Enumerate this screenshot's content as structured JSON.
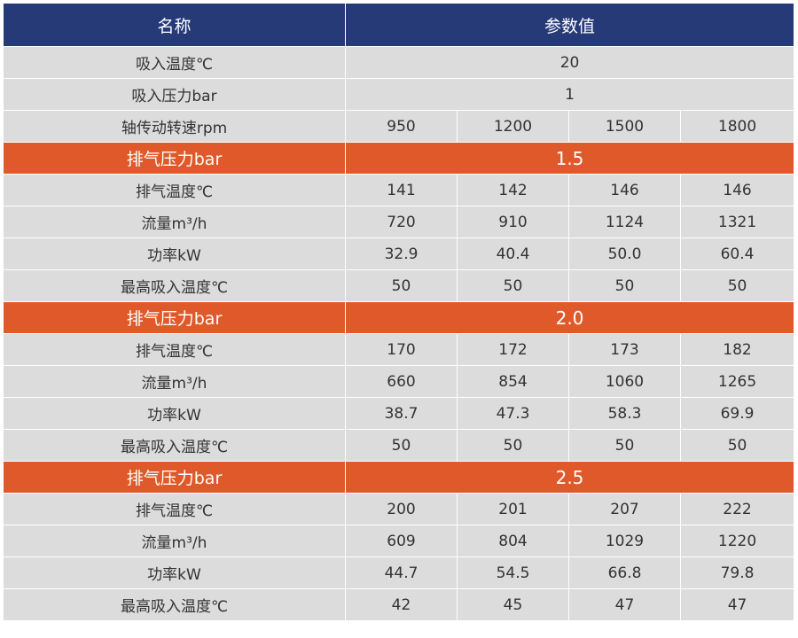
{
  "header": {
    "name": "名称",
    "value": "参数值"
  },
  "common": {
    "intake_temp": {
      "label": "吸入温度℃",
      "value": "20"
    },
    "intake_pressure": {
      "label": "吸入压力bar",
      "value": "1"
    },
    "speed": {
      "label": "轴传动转速rpm",
      "values": [
        "950",
        "1200",
        "1500",
        "1800"
      ]
    }
  },
  "sections": [
    {
      "pressure_label": "排气压力bar",
      "pressure_value": "1.5",
      "rows": [
        {
          "label": "排气温度℃",
          "values": [
            "141",
            "142",
            "146",
            "146"
          ]
        },
        {
          "label": "流量m³/h",
          "values": [
            "720",
            "910",
            "1124",
            "1321"
          ]
        },
        {
          "label": "功率kW",
          "values": [
            "32.9",
            "40.4",
            "50.0",
            "60.4"
          ]
        },
        {
          "label": "最高吸入温度℃",
          "values": [
            "50",
            "50",
            "50",
            "50"
          ]
        }
      ]
    },
    {
      "pressure_label": "排气压力bar",
      "pressure_value": "2.0",
      "rows": [
        {
          "label": "排气温度℃",
          "values": [
            "170",
            "172",
            "173",
            "182"
          ]
        },
        {
          "label": "流量m³/h",
          "values": [
            "660",
            "854",
            "1060",
            "1265"
          ]
        },
        {
          "label": "功率kW",
          "values": [
            "38.7",
            "47.3",
            "58.3",
            "69.9"
          ]
        },
        {
          "label": "最高吸入温度℃",
          "values": [
            "50",
            "50",
            "50",
            "50"
          ]
        }
      ]
    },
    {
      "pressure_label": "排气压力bar",
      "pressure_value": "2.5",
      "rows": [
        {
          "label": "排气温度℃",
          "values": [
            "200",
            "201",
            "207",
            "222"
          ]
        },
        {
          "label": "流量m³/h",
          "values": [
            "609",
            "804",
            "1029",
            "1220"
          ]
        },
        {
          "label": "功率kW",
          "values": [
            "44.7",
            "54.5",
            "66.8",
            "79.8"
          ]
        },
        {
          "label": "最高吸入温度℃",
          "values": [
            "42",
            "45",
            "47",
            "47"
          ]
        }
      ]
    }
  ],
  "colors": {
    "header_bg": "#273a78",
    "pressure_bg": "#e0592a",
    "row_bg": "#dcdcdc"
  }
}
